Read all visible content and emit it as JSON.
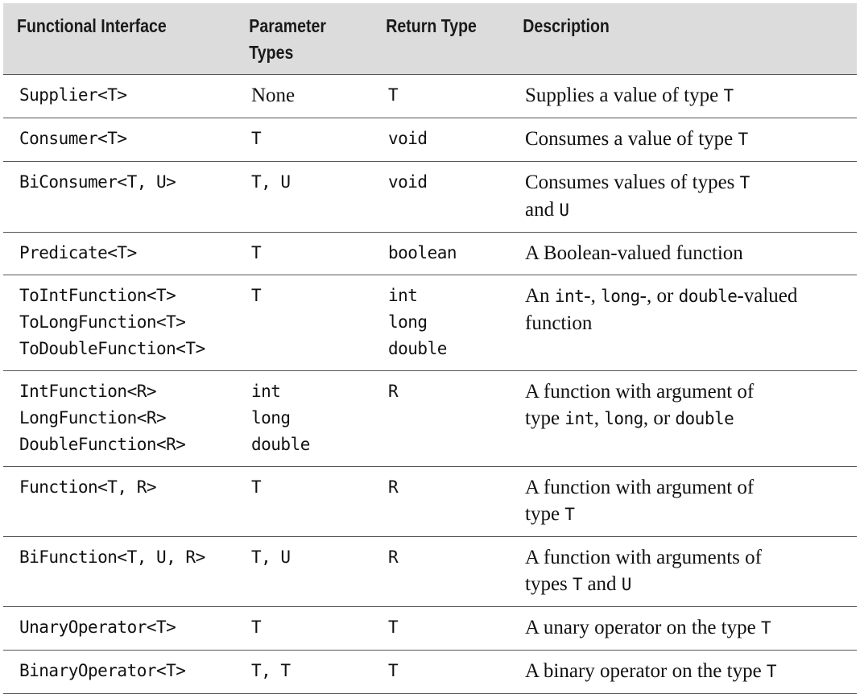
{
  "table": {
    "headers": {
      "interface": "Functional Interface",
      "params": [
        "Parameter",
        "Types"
      ],
      "return": "Return Type",
      "description": "Description"
    },
    "rows": [
      {
        "interface": [
          "Supplier<T>"
        ],
        "params": [
          "None"
        ],
        "returns": [
          "T"
        ],
        "description": [
          [
            {
              "t": "Supplies a value of type "
            },
            {
              "c": "T"
            }
          ]
        ]
      },
      {
        "interface": [
          "Consumer<T>"
        ],
        "params": [
          "T"
        ],
        "returns": [
          "void"
        ],
        "description": [
          [
            {
              "t": "Consumes a value of type "
            },
            {
              "c": "T"
            }
          ]
        ]
      },
      {
        "interface": [
          "BiConsumer<T, U>"
        ],
        "params": [
          "T, U"
        ],
        "returns": [
          "void"
        ],
        "description": [
          [
            {
              "t": "Consumes values of types "
            },
            {
              "c": "T"
            }
          ],
          [
            {
              "t": "and "
            },
            {
              "c": "U"
            }
          ]
        ]
      },
      {
        "interface": [
          "Predicate<T>"
        ],
        "params": [
          "T"
        ],
        "returns": [
          "boolean"
        ],
        "description": [
          [
            {
              "t": "A Boolean-valued function"
            }
          ]
        ]
      },
      {
        "interface": [
          "ToIntFunction<T>",
          "ToLongFunction<T>",
          "ToDoubleFunction<T>"
        ],
        "params": [
          "T"
        ],
        "returns": [
          "int",
          "long",
          "double"
        ],
        "description": [
          [
            {
              "t": "An "
            },
            {
              "c": "int"
            },
            {
              "t": "-, "
            },
            {
              "c": "long"
            },
            {
              "t": "-, or "
            },
            {
              "c": "double"
            },
            {
              "t": "-valued"
            }
          ],
          [
            {
              "t": "function"
            }
          ]
        ]
      },
      {
        "interface": [
          "IntFunction<R>",
          "LongFunction<R>",
          "DoubleFunction<R>"
        ],
        "params": [
          "int",
          "long",
          "double"
        ],
        "returns": [
          "R"
        ],
        "description": [
          [
            {
              "t": "A function with argument of"
            }
          ],
          [
            {
              "t": "type "
            },
            {
              "c": "int"
            },
            {
              "t": ", "
            },
            {
              "c": "long"
            },
            {
              "t": ", or "
            },
            {
              "c": "double"
            }
          ]
        ]
      },
      {
        "interface": [
          "Function<T, R>"
        ],
        "params": [
          "T"
        ],
        "returns": [
          "R"
        ],
        "description": [
          [
            {
              "t": "A function with argument of"
            }
          ],
          [
            {
              "t": "type "
            },
            {
              "c": "T"
            }
          ]
        ]
      },
      {
        "interface": [
          "BiFunction<T, U, R>"
        ],
        "params": [
          "T, U"
        ],
        "returns": [
          "R"
        ],
        "description": [
          [
            {
              "t": "A function with arguments of"
            }
          ],
          [
            {
              "t": "types "
            },
            {
              "c": "T"
            },
            {
              "t": " and "
            },
            {
              "c": "U"
            }
          ]
        ]
      },
      {
        "interface": [
          "UnaryOperator<T>"
        ],
        "params": [
          "T"
        ],
        "returns": [
          "T"
        ],
        "description": [
          [
            {
              "t": "A unary operator on the type "
            },
            {
              "c": "T"
            }
          ]
        ]
      },
      {
        "interface": [
          "BinaryOperator<T>"
        ],
        "params": [
          "T, T"
        ],
        "returns": [
          "T"
        ],
        "description": [
          [
            {
              "t": "A binary operator on the type "
            },
            {
              "c": "T"
            }
          ]
        ]
      }
    ]
  }
}
